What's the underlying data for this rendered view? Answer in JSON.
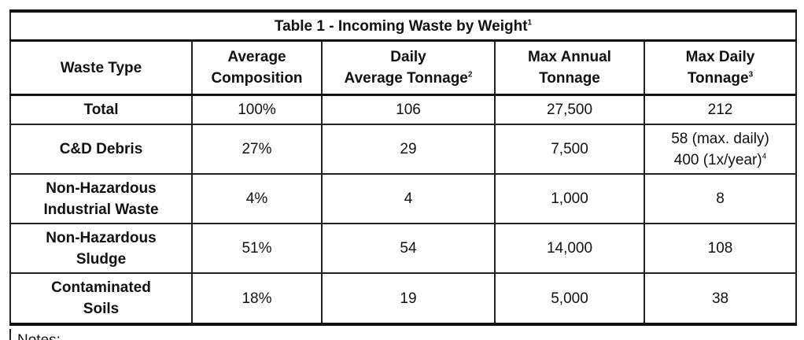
{
  "table": {
    "title": "Table 1 - Incoming Waste by Weight",
    "title_sup": "1",
    "headers": [
      {
        "line1": "Waste Type",
        "line2": "",
        "sup": ""
      },
      {
        "line1": "Average",
        "line2": "Composition",
        "sup": ""
      },
      {
        "line1": "Daily",
        "line2": "Average Tonnage",
        "sup": "2"
      },
      {
        "line1": "Max Annual",
        "line2": "Tonnage",
        "sup": ""
      },
      {
        "line1": "Max Daily",
        "line2": "Tonnage",
        "sup": "3"
      }
    ],
    "rows": [
      {
        "type": [
          "Total"
        ],
        "composition": "100%",
        "daily_avg": "106",
        "max_annual": "27,500",
        "max_daily": [
          "212"
        ],
        "max_daily_sup": ""
      },
      {
        "type": [
          "C&D Debris"
        ],
        "composition": "27%",
        "daily_avg": "29",
        "max_annual": "7,500",
        "max_daily": [
          "58 (max. daily)",
          "400 (1x/year)"
        ],
        "max_daily_sup": "4"
      },
      {
        "type": [
          "Non-Hazardous",
          "Industrial Waste"
        ],
        "composition": "4%",
        "daily_avg": "4",
        "max_annual": "1,000",
        "max_daily": [
          "8"
        ],
        "max_daily_sup": ""
      },
      {
        "type": [
          "Non-Hazardous",
          "Sludge"
        ],
        "composition": "51%",
        "daily_avg": "54",
        "max_annual": "14,000",
        "max_daily": [
          "108"
        ],
        "max_daily_sup": ""
      },
      {
        "type": [
          "Contaminated",
          "Soils"
        ],
        "composition": "18%",
        "daily_avg": "19",
        "max_annual": "5,000",
        "max_daily": [
          "38"
        ],
        "max_daily_sup": ""
      }
    ]
  },
  "notes_label": "Notes:"
}
